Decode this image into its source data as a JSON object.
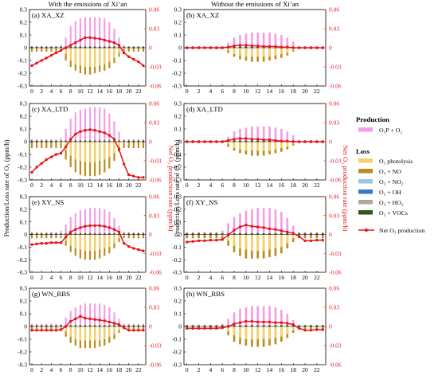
{
  "columns": [
    {
      "title": "With the emissions of Xi’an"
    },
    {
      "title": "Without the emissions of Xi’an"
    }
  ],
  "y_left_label": "Production/Loss rate of O₃ (ppm/h)",
  "y_right_label": "Net O₃ production rate (ppm/h)",
  "legend": {
    "production_heading": "Production",
    "loss_heading": "Loss",
    "items": [
      {
        "label": "O₃P + O₂",
        "color": "#f39ee8",
        "group": "production",
        "kind": "bar"
      },
      {
        "label": "O₃ photolysis",
        "color": "#f3d36b",
        "group": "loss",
        "kind": "bar"
      },
      {
        "label": "O₃ + NO",
        "color": "#bc8c1c",
        "group": "loss",
        "kind": "bar"
      },
      {
        "label": "O₃ + NO₂",
        "color": "#9ec5e8",
        "group": "loss",
        "kind": "bar"
      },
      {
        "label": "O₃ + OH",
        "color": "#3a78c3",
        "group": "loss",
        "kind": "bar"
      },
      {
        "label": "O₃ + HO₂",
        "color": "#b1a89c",
        "group": "loss",
        "kind": "bar"
      },
      {
        "label": "O₃ + VOCs",
        "color": "#2d5a1b",
        "group": "loss",
        "kind": "bar"
      },
      {
        "label": "Net O₃ production",
        "color": "#e8151b",
        "group": "net",
        "kind": "line"
      }
    ]
  },
  "chart_data": {
    "type": "bar",
    "x": [
      0,
      1,
      2,
      3,
      4,
      5,
      6,
      7,
      8,
      9,
      10,
      11,
      12,
      13,
      14,
      15,
      16,
      17,
      18,
      19,
      20,
      21,
      22,
      23
    ],
    "x_ticks": [
      "0",
      "2",
      "4",
      "6",
      "8",
      "10",
      "12",
      "14",
      "16",
      "18",
      "20",
      "22"
    ],
    "ylim_left": [
      -0.3,
      0.3
    ],
    "y_ticks_left": [
      "0.3",
      "0.2",
      "0.1",
      "0",
      "-0.1",
      "-0.2",
      "-0.3"
    ],
    "ylim_right": [
      -0.06,
      0.06
    ],
    "y_ticks_right": [
      "0.06",
      "0.03",
      "0",
      "-0.03",
      "-0.06"
    ],
    "panels": [
      {
        "label": "(a) XA_XZ",
        "production": [
          0.01,
          0.01,
          0.01,
          0.01,
          0.01,
          0.01,
          0.02,
          0.08,
          0.17,
          0.21,
          0.23,
          0.24,
          0.24,
          0.24,
          0.24,
          0.23,
          0.2,
          0.15,
          0.08,
          0.02,
          0.01,
          0.01,
          0.01,
          0.01
        ],
        "photolysis": [
          0,
          0,
          0,
          0,
          0,
          0,
          -0.01,
          -0.05,
          -0.1,
          -0.13,
          -0.14,
          -0.15,
          -0.15,
          -0.15,
          -0.14,
          -0.13,
          -0.11,
          -0.08,
          -0.04,
          -0.01,
          0,
          0,
          0,
          0
        ],
        "o3_no": [
          -0.03,
          -0.03,
          -0.03,
          -0.03,
          -0.03,
          -0.03,
          -0.03,
          -0.1,
          -0.15,
          -0.18,
          -0.2,
          -0.21,
          -0.21,
          -0.2,
          -0.19,
          -0.18,
          -0.16,
          -0.12,
          -0.07,
          -0.03,
          -0.03,
          -0.03,
          -0.03,
          -0.03
        ],
        "net": [
          -0.028,
          -0.024,
          -0.02,
          -0.016,
          -0.012,
          -0.008,
          -0.004,
          0,
          0.004,
          0.008,
          0.012,
          0.016,
          0.016,
          0.015,
          0.014,
          0.012,
          0.01,
          0.008,
          0.004,
          -0.008,
          -0.014,
          -0.018,
          -0.022,
          -0.028
        ]
      },
      {
        "label": "(b) XA_XZ",
        "production": [
          0.01,
          0.01,
          0.01,
          0.01,
          0.01,
          0.01,
          0.01,
          0.04,
          0.08,
          0.1,
          0.11,
          0.12,
          0.12,
          0.12,
          0.12,
          0.11,
          0.1,
          0.08,
          0.05,
          0.01,
          0.01,
          0.01,
          0.01,
          0.01
        ],
        "photolysis": [
          0,
          0,
          0,
          0,
          0,
          0,
          0,
          -0.02,
          -0.05,
          -0.06,
          -0.07,
          -0.07,
          -0.07,
          -0.07,
          -0.07,
          -0.06,
          -0.05,
          -0.04,
          -0.02,
          0,
          0,
          0,
          0,
          0
        ],
        "o3_no": [
          -0.01,
          -0.01,
          -0.01,
          -0.01,
          -0.01,
          -0.01,
          -0.01,
          -0.04,
          -0.07,
          -0.09,
          -0.1,
          -0.11,
          -0.11,
          -0.11,
          -0.1,
          -0.09,
          -0.08,
          -0.06,
          -0.03,
          -0.01,
          -0.01,
          -0.01,
          -0.01,
          -0.01
        ],
        "net": [
          0,
          0,
          0,
          0,
          0,
          0,
          0,
          0.001,
          0.003,
          0.004,
          0.004,
          0.003,
          0.003,
          0.002,
          0.002,
          0.002,
          0.001,
          0.001,
          0,
          0,
          0,
          0,
          0,
          0
        ]
      },
      {
        "label": "(c) XA_LTD",
        "production": [
          0.02,
          0.02,
          0.02,
          0.02,
          0.02,
          0.02,
          0.03,
          0.1,
          0.18,
          0.23,
          0.25,
          0.26,
          0.27,
          0.27,
          0.27,
          0.26,
          0.22,
          0.16,
          0.08,
          0.02,
          0.02,
          0.02,
          0.02,
          0.02
        ],
        "photolysis": [
          0,
          0,
          0,
          0,
          0,
          0,
          -0.01,
          -0.06,
          -0.11,
          -0.14,
          -0.15,
          -0.16,
          -0.16,
          -0.16,
          -0.15,
          -0.14,
          -0.12,
          -0.09,
          -0.04,
          -0.01,
          0,
          0,
          0,
          0
        ],
        "o3_no": [
          -0.05,
          -0.05,
          -0.05,
          -0.05,
          -0.05,
          -0.05,
          -0.05,
          -0.14,
          -0.2,
          -0.24,
          -0.26,
          -0.27,
          -0.27,
          -0.27,
          -0.26,
          -0.24,
          -0.21,
          -0.15,
          -0.08,
          -0.05,
          -0.05,
          -0.05,
          -0.05,
          -0.05
        ],
        "net": [
          -0.048,
          -0.04,
          -0.034,
          -0.028,
          -0.024,
          -0.02,
          -0.018,
          -0.008,
          0.004,
          0.012,
          0.016,
          0.018,
          0.019,
          0.018,
          0.016,
          0.014,
          0.01,
          0.004,
          -0.012,
          -0.035,
          -0.052,
          -0.054,
          -0.056,
          -0.056
        ]
      },
      {
        "label": "(d) XA_LTD",
        "production": [
          0.01,
          0.01,
          0.01,
          0.01,
          0.01,
          0.01,
          0.01,
          0.04,
          0.08,
          0.1,
          0.11,
          0.12,
          0.12,
          0.12,
          0.12,
          0.11,
          0.1,
          0.08,
          0.05,
          0.01,
          0.01,
          0.01,
          0.01,
          0.01
        ],
        "photolysis": [
          0,
          0,
          0,
          0,
          0,
          0,
          0,
          -0.02,
          -0.05,
          -0.06,
          -0.07,
          -0.07,
          -0.07,
          -0.07,
          -0.07,
          -0.06,
          -0.05,
          -0.04,
          -0.02,
          0,
          0,
          0,
          0,
          0
        ],
        "o3_no": [
          -0.01,
          -0.01,
          -0.01,
          -0.01,
          -0.01,
          -0.01,
          -0.01,
          -0.04,
          -0.07,
          -0.09,
          -0.1,
          -0.11,
          -0.11,
          -0.11,
          -0.1,
          -0.09,
          -0.08,
          -0.06,
          -0.03,
          -0.01,
          -0.01,
          -0.01,
          -0.01,
          -0.01
        ],
        "net": [
          0,
          0,
          0,
          0,
          0,
          0,
          0,
          0.002,
          0.004,
          0.005,
          0.005,
          0.004,
          0.004,
          0.003,
          0.003,
          0.002,
          0.001,
          0.001,
          0,
          0,
          0,
          0,
          0,
          0
        ]
      },
      {
        "label": "(e) XY_NS",
        "production": [
          0.02,
          0.02,
          0.02,
          0.02,
          0.02,
          0.02,
          0.03,
          0.08,
          0.14,
          0.17,
          0.19,
          0.2,
          0.21,
          0.21,
          0.21,
          0.2,
          0.18,
          0.13,
          0.07,
          0.02,
          0.02,
          0.02,
          0.02,
          0.02
        ],
        "photolysis": [
          0,
          0,
          0,
          0,
          0,
          0,
          -0.01,
          -0.05,
          -0.09,
          -0.11,
          -0.12,
          -0.13,
          -0.13,
          -0.13,
          -0.12,
          -0.11,
          -0.1,
          -0.07,
          -0.03,
          -0.01,
          0,
          0,
          0,
          0
        ],
        "o3_no": [
          -0.03,
          -0.03,
          -0.03,
          -0.03,
          -0.03,
          -0.03,
          -0.03,
          -0.09,
          -0.14,
          -0.17,
          -0.19,
          -0.2,
          -0.2,
          -0.2,
          -0.19,
          -0.17,
          -0.15,
          -0.11,
          -0.06,
          -0.03,
          -0.03,
          -0.03,
          -0.03,
          -0.03
        ],
        "net": [
          -0.016,
          -0.015,
          -0.014,
          -0.014,
          -0.013,
          -0.013,
          -0.013,
          -0.004,
          0.004,
          0.008,
          0.011,
          0.013,
          0.014,
          0.014,
          0.014,
          0.013,
          0.011,
          0.008,
          0.004,
          -0.014,
          -0.019,
          -0.022,
          -0.024,
          -0.026
        ]
      },
      {
        "label": "(f) XY_NS",
        "production": [
          0.02,
          0.02,
          0.02,
          0.02,
          0.02,
          0.02,
          0.03,
          0.09,
          0.14,
          0.17,
          0.19,
          0.2,
          0.21,
          0.21,
          0.21,
          0.2,
          0.18,
          0.13,
          0.07,
          0.02,
          0.02,
          0.02,
          0.02,
          0.02
        ],
        "photolysis": [
          0,
          0,
          0,
          0,
          0,
          0,
          -0.01,
          -0.05,
          -0.09,
          -0.11,
          -0.12,
          -0.13,
          -0.13,
          -0.13,
          -0.12,
          -0.11,
          -0.1,
          -0.07,
          -0.03,
          -0.01,
          0,
          0,
          0,
          0
        ],
        "o3_no": [
          -0.03,
          -0.03,
          -0.03,
          -0.03,
          -0.03,
          -0.03,
          -0.03,
          -0.09,
          -0.14,
          -0.17,
          -0.19,
          -0.19,
          -0.19,
          -0.19,
          -0.18,
          -0.17,
          -0.15,
          -0.11,
          -0.06,
          -0.03,
          -0.03,
          -0.03,
          -0.03,
          -0.03
        ],
        "net": [
          -0.012,
          -0.011,
          -0.01,
          -0.01,
          -0.009,
          -0.009,
          -0.008,
          -0.001,
          0.007,
          0.012,
          0.015,
          0.013,
          0.012,
          0.011,
          0.009,
          0.008,
          0.006,
          0.004,
          0.002,
          -0.003,
          -0.01,
          -0.01,
          -0.009,
          -0.009
        ]
      },
      {
        "label": "(g) WN_RBS",
        "production": [
          0.02,
          0.02,
          0.02,
          0.02,
          0.02,
          0.02,
          0.02,
          0.07,
          0.12,
          0.15,
          0.17,
          0.18,
          0.18,
          0.18,
          0.18,
          0.17,
          0.15,
          0.11,
          0.06,
          0.02,
          0.02,
          0.02,
          0.02,
          0.02
        ],
        "photolysis": [
          0,
          0,
          0,
          0,
          0,
          0,
          -0.01,
          -0.04,
          -0.08,
          -0.1,
          -0.11,
          -0.11,
          -0.11,
          -0.11,
          -0.11,
          -0.1,
          -0.08,
          -0.06,
          -0.03,
          -0.01,
          0,
          0,
          0,
          0
        ],
        "o3_no": [
          -0.02,
          -0.02,
          -0.02,
          -0.02,
          -0.02,
          -0.02,
          -0.02,
          -0.08,
          -0.13,
          -0.15,
          -0.17,
          -0.17,
          -0.17,
          -0.17,
          -0.16,
          -0.15,
          -0.13,
          -0.1,
          -0.05,
          -0.02,
          -0.02,
          -0.02,
          -0.02,
          -0.02
        ],
        "net": [
          -0.006,
          -0.006,
          -0.006,
          -0.006,
          -0.006,
          -0.006,
          -0.005,
          0,
          0.008,
          0.012,
          0.016,
          0.013,
          0.012,
          0.011,
          0.01,
          0.009,
          0.007,
          0.005,
          0.003,
          -0.002,
          -0.006,
          -0.006,
          -0.006,
          -0.006
        ]
      },
      {
        "label": "(h) WN_RBS",
        "production": [
          0.01,
          0.01,
          0.01,
          0.01,
          0.01,
          0.01,
          0.02,
          0.06,
          0.11,
          0.14,
          0.15,
          0.16,
          0.16,
          0.16,
          0.16,
          0.15,
          0.13,
          0.1,
          0.05,
          0.01,
          0.01,
          0.01,
          0.01,
          0.01
        ],
        "photolysis": [
          0,
          0,
          0,
          0,
          0,
          0,
          -0.01,
          -0.04,
          -0.07,
          -0.09,
          -0.1,
          -0.1,
          -0.1,
          -0.1,
          -0.1,
          -0.09,
          -0.08,
          -0.06,
          -0.03,
          -0.01,
          0,
          0,
          0,
          0
        ],
        "o3_no": [
          -0.02,
          -0.02,
          -0.02,
          -0.02,
          -0.02,
          -0.02,
          -0.02,
          -0.07,
          -0.12,
          -0.14,
          -0.15,
          -0.16,
          -0.16,
          -0.16,
          -0.15,
          -0.14,
          -0.12,
          -0.09,
          -0.05,
          -0.02,
          -0.02,
          -0.02,
          -0.02,
          -0.02
        ],
        "net": [
          -0.003,
          -0.003,
          -0.003,
          -0.003,
          -0.003,
          -0.003,
          -0.002,
          0,
          0.004,
          0.006,
          0.008,
          0.008,
          0.007,
          0.007,
          0.007,
          0.006,
          0.006,
          0.005,
          0.003,
          -0.003,
          -0.006,
          -0.006,
          -0.005,
          -0.005
        ]
      }
    ]
  }
}
